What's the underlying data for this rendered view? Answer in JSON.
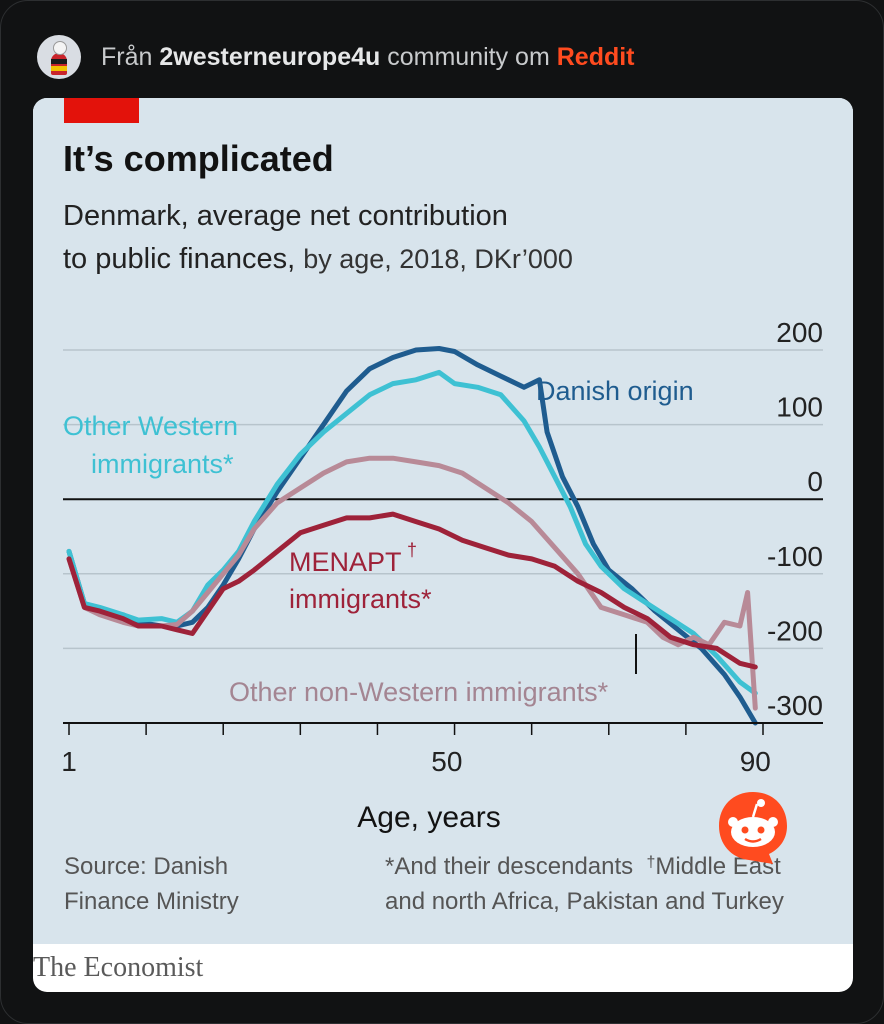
{
  "header": {
    "prefix": "Från",
    "community": "2westerneurope4u",
    "middle": "community om",
    "platform": "Reddit"
  },
  "colors": {
    "background": "#111213",
    "chart_background": "#d8e4ec",
    "economist_red": "#e3120b",
    "reddit_orange": "#ff4b1f",
    "danish_origin": "#1f5c8f",
    "other_western": "#3ec1d3",
    "other_non_western": "#b88a97",
    "menapt": "#9e2239"
  },
  "icons": {
    "reddit": "reddit-snoo-icon",
    "avatar": "community-avatar"
  },
  "chart_data": {
    "type": "line",
    "title": "It’s complicated",
    "subtitle_main_1": "Denmark, average net contribution",
    "subtitle_main_2": "to public finances,",
    "subtitle_detail": "by age, 2018, DKr’000",
    "xlabel": "Age, years",
    "ylabel": "",
    "xlim": [
      1,
      91
    ],
    "ylim": [
      -300,
      200
    ],
    "x_ticks": [
      1,
      50,
      90
    ],
    "x_tick_labels": [
      "1",
      "50",
      "90"
    ],
    "y_ticks": [
      200,
      100,
      0,
      -100,
      -200,
      -300
    ],
    "y_tick_labels": [
      "200",
      "100",
      "0",
      "-100",
      "-200",
      "-300"
    ],
    "grid": true,
    "series": [
      {
        "name": "Danish origin",
        "color": "#1f5c8f",
        "x": [
          1,
          3,
          5,
          8,
          10,
          13,
          15,
          17,
          19,
          21,
          23,
          25,
          28,
          31,
          34,
          37,
          40,
          43,
          46,
          49,
          51,
          54,
          57,
          60,
          62,
          63,
          65,
          67,
          69,
          71,
          74,
          77,
          80,
          83,
          86,
          88,
          90
        ],
        "y": [
          -70,
          -140,
          -150,
          -155,
          -165,
          -170,
          -170,
          -165,
          -145,
          -115,
          -80,
          -40,
          10,
          55,
          100,
          145,
          175,
          190,
          200,
          202,
          198,
          180,
          165,
          150,
          160,
          90,
          30,
          -10,
          -60,
          -95,
          -120,
          -150,
          -175,
          -200,
          -235,
          -265,
          -300
        ]
      },
      {
        "name": "Other Western immigrants*",
        "color": "#3ec1d3",
        "x": [
          1,
          3,
          5,
          8,
          10,
          13,
          15,
          17,
          19,
          21,
          23,
          25,
          28,
          31,
          34,
          37,
          40,
          43,
          46,
          49,
          51,
          54,
          57,
          60,
          62,
          64,
          66,
          68,
          70,
          73,
          76,
          79,
          82,
          85,
          88,
          90
        ],
        "y": [
          -70,
          -140,
          -145,
          -155,
          -162,
          -160,
          -165,
          -150,
          -115,
          -95,
          -70,
          -30,
          20,
          60,
          90,
          115,
          140,
          155,
          160,
          170,
          155,
          150,
          140,
          105,
          70,
          30,
          -10,
          -60,
          -90,
          -120,
          -140,
          -160,
          -180,
          -210,
          -245,
          -260
        ]
      },
      {
        "name": "Other non-Western immigrants*",
        "color": "#b88a97",
        "x": [
          1,
          3,
          5,
          8,
          10,
          13,
          15,
          17,
          19,
          21,
          23,
          25,
          28,
          31,
          34,
          37,
          40,
          43,
          46,
          49,
          52,
          55,
          58,
          61,
          64,
          67,
          70,
          73,
          76,
          78,
          80,
          82,
          84,
          86,
          88,
          89,
          90
        ],
        "y": [
          -80,
          -145,
          -155,
          -165,
          -170,
          -170,
          -168,
          -150,
          -125,
          -100,
          -75,
          -40,
          -5,
          15,
          35,
          50,
          55,
          55,
          50,
          45,
          35,
          15,
          -5,
          -30,
          -65,
          -100,
          -145,
          -155,
          -165,
          -185,
          -195,
          -185,
          -195,
          -165,
          -170,
          -125,
          -280
        ]
      },
      {
        "name": "MENAPT† immigrants*",
        "color": "#9e2239",
        "x": [
          1,
          3,
          5,
          8,
          10,
          13,
          15,
          17,
          19,
          21,
          23,
          25,
          28,
          31,
          34,
          37,
          40,
          43,
          46,
          49,
          52,
          55,
          58,
          61,
          64,
          67,
          70,
          73,
          76,
          79,
          82,
          85,
          88,
          90
        ],
        "y": [
          -80,
          -145,
          -150,
          -160,
          -170,
          -170,
          -175,
          -180,
          -150,
          -120,
          -110,
          -95,
          -70,
          -45,
          -35,
          -25,
          -25,
          -20,
          -30,
          -40,
          -55,
          -65,
          -75,
          -80,
          -90,
          -110,
          -125,
          -145,
          -160,
          -185,
          -195,
          -200,
          -220,
          -225
        ]
      }
    ],
    "annotations": [
      "Danish origin",
      "Other Western",
      "immigrants*",
      "MENAPT",
      "†",
      "immigrants*",
      "Other non-Western immigrants*"
    ],
    "source_line1": "Source: Danish",
    "source_line2": "Finance Ministry",
    "footnote_line1": "*And their descendants",
    "footnote_dagger": "†",
    "footnote_line1b": "Middle East",
    "footnote_line2": "and north Africa, Pakistan and Turkey",
    "publisher": "The Economist"
  }
}
